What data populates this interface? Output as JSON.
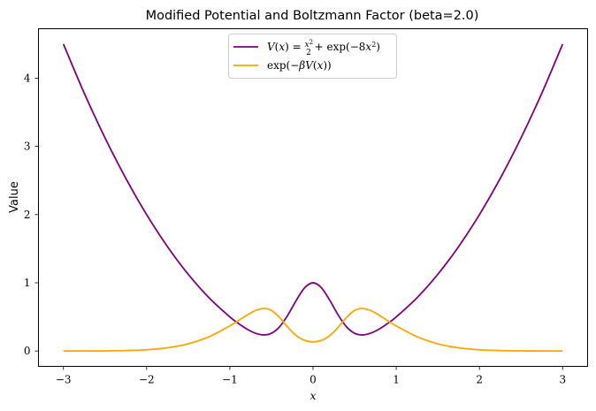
{
  "chart_data": {
    "type": "line",
    "title": "Modified Potential and Boltzmann Factor (beta=2.0)",
    "xlabel": "x",
    "ylabel": "Value",
    "xlim": [
      -3.3,
      3.3
    ],
    "ylim": [
      -0.225,
      4.725
    ],
    "grid": false,
    "legend_position": "top-center",
    "x_ticks": [
      -3,
      -2,
      -1,
      0,
      1,
      2,
      3
    ],
    "x_tick_labels": [
      "−3",
      "−2",
      "−1",
      "0",
      "1",
      "2",
      "3"
    ],
    "y_ticks": [
      0,
      1,
      2,
      3,
      4
    ],
    "y_tick_labels": [
      "0",
      "1",
      "2",
      "3",
      "4"
    ],
    "series": [
      {
        "name": "V(x) = x²/2 + exp(−8x²)",
        "color": "#800080",
        "x": [
          -3.0,
          -2.75,
          -2.5,
          -2.25,
          -2.0,
          -1.75,
          -1.5,
          -1.25,
          -1.0,
          -0.9,
          -0.8,
          -0.7,
          -0.6,
          -0.5,
          -0.4,
          -0.3,
          -0.2,
          -0.1,
          0.0,
          0.1,
          0.2,
          0.3,
          0.4,
          0.5,
          0.6,
          0.7,
          0.8,
          0.9,
          1.0,
          1.25,
          1.5,
          1.75,
          2.0,
          2.25,
          2.5,
          2.75,
          3.0
        ],
        "y": [
          4.5,
          3.781,
          3.125,
          2.531,
          2.0,
          1.531,
          1.125,
          0.781,
          0.5,
          0.407,
          0.326,
          0.265,
          0.236,
          0.26,
          0.358,
          0.532,
          0.746,
          0.928,
          1.0,
          0.928,
          0.746,
          0.532,
          0.358,
          0.26,
          0.236,
          0.265,
          0.326,
          0.407,
          0.5,
          0.781,
          1.125,
          1.531,
          2.0,
          2.531,
          3.125,
          3.781,
          4.5
        ]
      },
      {
        "name": "exp(−βV(x))",
        "color": "#ffa500",
        "x": [
          -3.0,
          -2.75,
          -2.5,
          -2.25,
          -2.0,
          -1.75,
          -1.5,
          -1.25,
          -1.0,
          -0.9,
          -0.8,
          -0.7,
          -0.6,
          -0.5,
          -0.4,
          -0.3,
          -0.2,
          -0.1,
          0.0,
          0.1,
          0.2,
          0.3,
          0.4,
          0.5,
          0.6,
          0.7,
          0.8,
          0.9,
          1.0,
          1.25,
          1.5,
          1.75,
          2.0,
          2.25,
          2.5,
          2.75,
          3.0
        ],
        "y": [
          0.0001,
          0.0005,
          0.0019,
          0.0063,
          0.018,
          0.047,
          0.105,
          0.21,
          0.368,
          0.443,
          0.521,
          0.589,
          0.624,
          0.595,
          0.489,
          0.345,
          0.225,
          0.156,
          0.135,
          0.156,
          0.225,
          0.345,
          0.489,
          0.595,
          0.624,
          0.589,
          0.521,
          0.443,
          0.368,
          0.21,
          0.105,
          0.047,
          0.018,
          0.0063,
          0.0019,
          0.0005,
          0.0001
        ]
      }
    ]
  }
}
